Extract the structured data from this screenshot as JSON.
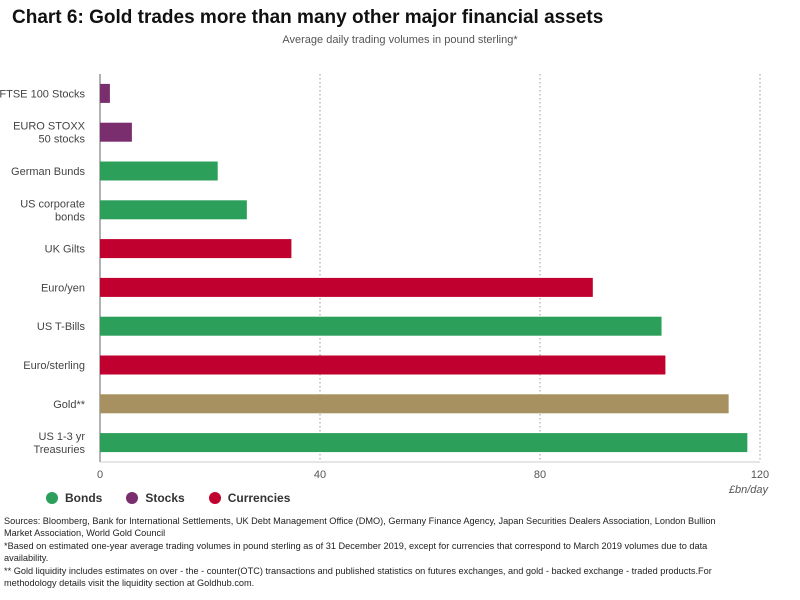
{
  "title": "Chart 6: Gold trades more than many other major financial assets",
  "subtitle": "Average daily trading volumes in pound sterling*",
  "legend": [
    {
      "label": "Bonds",
      "color": "#2ca05a"
    },
    {
      "label": "Stocks",
      "color": "#7a2e6e"
    },
    {
      "label": "Currencies",
      "color": "#c0002e"
    }
  ],
  "unit_label": "£bn/day",
  "notes": [
    "Sources: Bloomberg, Bank for International Settlements, UK Debt Management Office (DMO), Germany Finance Agency, Japan Securities Dealers Association, London Bullion Market Association, World Gold Council",
    "*Based on estimated one-year average trading volumes in pound sterling as of 31 December 2019, except for currencies that correspond to March 2019 volumes due to data availability.",
    "** Gold liquidity includes estimates on over - the - counter(OTC) transactions and published statistics on futures exchanges, and gold - backed exchange - traded products.For methodology details visit the liquidity section at Goldhub.com."
  ],
  "chart_data": {
    "type": "bar",
    "orientation": "horizontal",
    "title": "Chart 6: Gold trades more than many other major financial assets",
    "subtitle": "Average daily trading volumes in pound sterling*",
    "xlabel": "£bn/day",
    "xlim": [
      0,
      120
    ],
    "xticks": [
      0,
      40,
      80,
      120
    ],
    "grid": true,
    "legend_position": "bottom-left",
    "bars": [
      {
        "label": "FTSE 100 Stocks",
        "value": 1.8,
        "group": "Stocks",
        "color": "#7a2e6e"
      },
      {
        "label": "EURO STOXX 50 stocks",
        "value": 5.8,
        "group": "Stocks",
        "color": "#7a2e6e"
      },
      {
        "label": "German Bunds",
        "value": 21.4,
        "group": "Bonds",
        "color": "#2ca05a"
      },
      {
        "label": "US corporate bonds",
        "value": 26.7,
        "group": "Bonds",
        "color": "#2ca05a"
      },
      {
        "label": "UK Gilts",
        "value": 34.8,
        "group": "Currencies",
        "color": "#c0002e"
      },
      {
        "label": "Euro/yen",
        "value": 89.6,
        "group": "Currencies",
        "color": "#c0002e"
      },
      {
        "label": "US T-Bills",
        "value": 102.1,
        "group": "Bonds",
        "color": "#2ca05a"
      },
      {
        "label": "Euro/sterling",
        "value": 102.8,
        "group": "Currencies",
        "color": "#c0002e"
      },
      {
        "label": "Gold**",
        "value": 114.3,
        "group": "Gold",
        "color": "#a89160"
      },
      {
        "label": "US 1-3 yr Treasuries",
        "value": 117.7,
        "group": "Bonds",
        "color": "#2ca05a"
      }
    ]
  }
}
